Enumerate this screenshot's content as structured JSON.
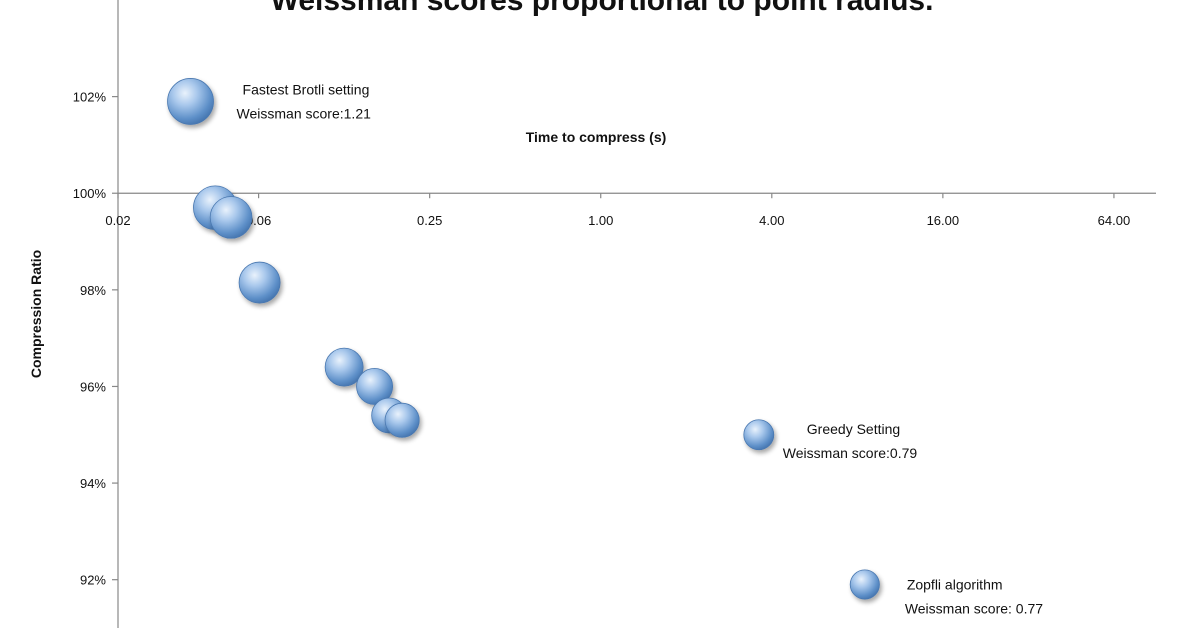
{
  "chart_data": {
    "type": "scatter",
    "title": "Weissman scores proportional to point radius.",
    "xlabel": "Time to compress (s)",
    "ylabel": "Compression Ratio",
    "x_scale": "log2",
    "xlim": [
      0.02,
      90
    ],
    "ylim": [
      91,
      104
    ],
    "x_ticks": [
      {
        "value": 0.02,
        "label": "0.02"
      },
      {
        "value": 0.0625,
        "label": "0.06"
      },
      {
        "value": 0.25,
        "label": "0.25"
      },
      {
        "value": 1.0,
        "label": "1.00"
      },
      {
        "value": 4.0,
        "label": "4.00"
      },
      {
        "value": 16.0,
        "label": "16.00"
      },
      {
        "value": 64.0,
        "label": "64.00"
      }
    ],
    "y_ticks": [
      {
        "value": 92,
        "label": "92%"
      },
      {
        "value": 94,
        "label": "94%"
      },
      {
        "value": 96,
        "label": "96%"
      },
      {
        "value": 98,
        "label": "98%"
      },
      {
        "value": 100,
        "label": "100%"
      },
      {
        "value": 102,
        "label": "102%"
      }
    ],
    "x_axis_crosses_at": 100,
    "grid": false,
    "point_color": "#6f9fd3",
    "points": [
      {
        "x": 0.036,
        "y": 101.9,
        "weissman": 1.21
      },
      {
        "x": 0.044,
        "y": 99.7,
        "weissman": 1.15
      },
      {
        "x": 0.05,
        "y": 99.5,
        "weissman": 1.1
      },
      {
        "x": 0.063,
        "y": 98.15,
        "weissman": 1.08
      },
      {
        "x": 0.125,
        "y": 96.4,
        "weissman": 1.0
      },
      {
        "x": 0.16,
        "y": 96.0,
        "weissman": 0.95
      },
      {
        "x": 0.18,
        "y": 95.4,
        "weissman": 0.92
      },
      {
        "x": 0.2,
        "y": 95.3,
        "weissman": 0.9
      },
      {
        "x": 3.6,
        "y": 95.0,
        "weissman": 0.79
      },
      {
        "x": 8.5,
        "y": 91.9,
        "weissman": 0.77
      }
    ],
    "annotations": [
      {
        "line1": "Fastest Brotli setting",
        "line2": "Weissman score:1.21",
        "point": 0
      },
      {
        "line1": "Greedy Setting",
        "line2": "Weissman score:0.79",
        "point": 8
      },
      {
        "line1": "Zopfli algorithm",
        "line2": "Weissman score: 0.77",
        "point": 9
      }
    ]
  }
}
